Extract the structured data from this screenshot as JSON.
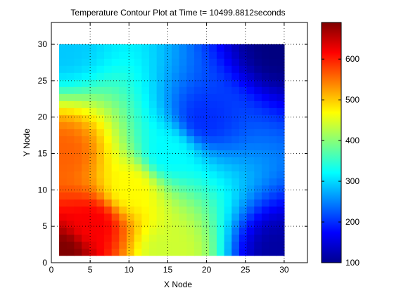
{
  "colors": {
    "background": "#ffffff",
    "axis": "#000000",
    "grid": "#000000"
  },
  "chart_data": {
    "type": "heatmap",
    "title": "Temperature Contour Plot at Time t= 10499.8812seconds",
    "xlabel": "X Node",
    "ylabel": "Y Node",
    "xlim": [
      0,
      33
    ],
    "ylim": [
      0,
      33
    ],
    "x_ticks": [
      0,
      5,
      10,
      15,
      20,
      25,
      30
    ],
    "y_ticks": [
      0,
      5,
      10,
      15,
      20,
      25,
      30
    ],
    "grid": "dotted",
    "nodes": {
      "x": [
        1,
        30
      ],
      "y": [
        1,
        30
      ]
    },
    "colormap": "jet",
    "colorbar": {
      "range": [
        100,
        690
      ],
      "ticks": [
        100,
        200,
        300,
        400,
        500,
        600
      ]
    },
    "field_samples": [
      {
        "x": 1,
        "y": 1,
        "value": 690
      },
      {
        "x": 5,
        "y": 5,
        "value": 620
      },
      {
        "x": 1,
        "y": 15,
        "value": 560
      },
      {
        "x": 15,
        "y": 1,
        "value": 440
      },
      {
        "x": 10,
        "y": 10,
        "value": 470
      },
      {
        "x": 1,
        "y": 30,
        "value": 290
      },
      {
        "x": 15,
        "y": 15,
        "value": 320
      },
      {
        "x": 30,
        "y": 1,
        "value": 120
      },
      {
        "x": 20,
        "y": 20,
        "value": 200
      },
      {
        "x": 30,
        "y": 30,
        "value": 100
      }
    ]
  }
}
